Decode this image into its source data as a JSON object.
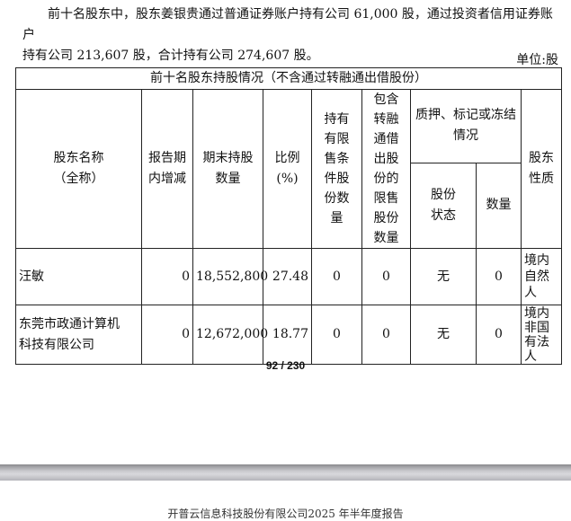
{
  "paragraph": {
    "line1": "前十名股东中，股东姜银贵通过普通证券账户持有公司 61,000 股，通过投资者信用证券账户",
    "line2": "持有公司 213,607 股，合计持有公司 274,607 股。"
  },
  "unit": "单位:股",
  "table": {
    "title": "前十名股东持股情况（不含通过转融通出借股份）",
    "headers": {
      "name": "股东名称（全称）",
      "change": "报告期内增减",
      "held": "期末持股数量",
      "ratio": "比例(%)",
      "restricted": "持有有限售条件股份数量",
      "lent": "包含转融通借出股份的限售股份数量",
      "pledge": "质押、标记或冻结情况",
      "pledge_status": "股份状态",
      "pledge_qty": "数量",
      "nature": "股东性质"
    },
    "rows": [
      {
        "name": "汪敏",
        "change": "0",
        "held": "18,552,800",
        "ratio": "27.48",
        "restricted": "0",
        "lent": "0",
        "pledge_status": "无",
        "pledge_qty": "0",
        "nature": "境内自然人"
      },
      {
        "name": "东莞市政通计算机科技有限公司",
        "change": "0",
        "held": "12,672,000",
        "ratio": "18.77",
        "restricted": "0",
        "lent": "0",
        "pledge_status": "无",
        "pledge_qty": "0",
        "nature": "境内非国有法人"
      }
    ]
  },
  "pager": "92 / 230",
  "footer": "开普云信息科技股份有限公司2025 年半年度报告"
}
